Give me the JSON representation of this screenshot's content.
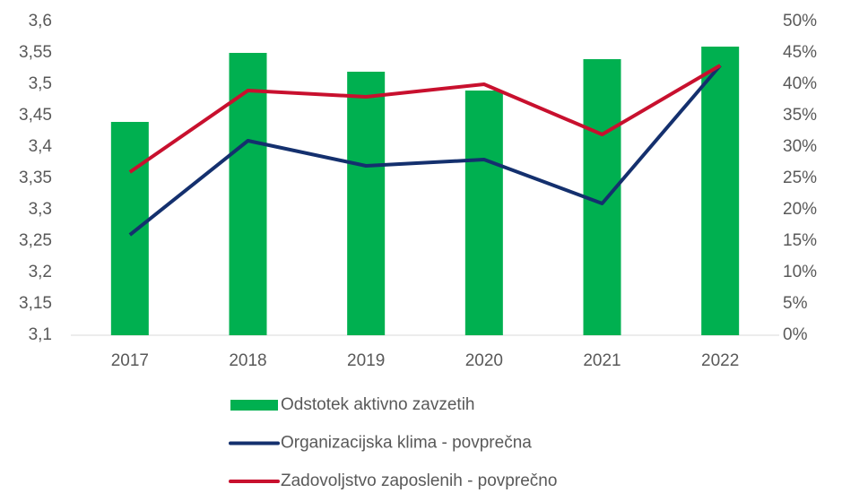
{
  "chart_data": {
    "type": "combo",
    "categories": [
      "2017",
      "2018",
      "2019",
      "2020",
      "2021",
      "2022"
    ],
    "series": [
      {
        "name": "Odstotek aktivno zavzetih",
        "type": "bar",
        "axis": "y2",
        "color": "#00b050",
        "values": [
          34,
          45,
          42,
          39,
          44,
          46
        ]
      },
      {
        "name": "Organizacijska klima - povprečna",
        "type": "line",
        "color": "#14306e",
        "values": [
          3.26,
          3.41,
          3.37,
          3.38,
          3.31,
          3.53
        ]
      },
      {
        "name": "Zadovoljstvo zaposlenih - povprečno",
        "type": "line",
        "color": "#c8102e",
        "values": [
          3.36,
          3.49,
          3.48,
          3.5,
          3.42,
          3.53
        ]
      }
    ],
    "ylim": [
      3.1,
      3.6
    ],
    "yticks": [
      {
        "value": 3.1,
        "label": "3,1"
      },
      {
        "value": 3.15,
        "label": "3,15"
      },
      {
        "value": 3.2,
        "label": "3,2"
      },
      {
        "value": 3.25,
        "label": "3,25"
      },
      {
        "value": 3.3,
        "label": "3,3"
      },
      {
        "value": 3.35,
        "label": "3,35"
      },
      {
        "value": 3.4,
        "label": "3,4"
      },
      {
        "value": 3.45,
        "label": "3,45"
      },
      {
        "value": 3.5,
        "label": "3,5"
      },
      {
        "value": 3.55,
        "label": "3,55"
      },
      {
        "value": 3.6,
        "label": "3,6"
      }
    ],
    "y2lim": [
      0,
      50
    ],
    "y2ticks": [
      {
        "value": 0,
        "label": "0%"
      },
      {
        "value": 5,
        "label": "5%"
      },
      {
        "value": 10,
        "label": "10%"
      },
      {
        "value": 15,
        "label": "15%"
      },
      {
        "value": 20,
        "label": "20%"
      },
      {
        "value": 25,
        "label": "25%"
      },
      {
        "value": 30,
        "label": "30%"
      },
      {
        "value": 35,
        "label": "35%"
      },
      {
        "value": 40,
        "label": "40%"
      },
      {
        "value": 45,
        "label": "45%"
      },
      {
        "value": 50,
        "label": "50%"
      }
    ],
    "grid": false,
    "legend": "bottom"
  }
}
